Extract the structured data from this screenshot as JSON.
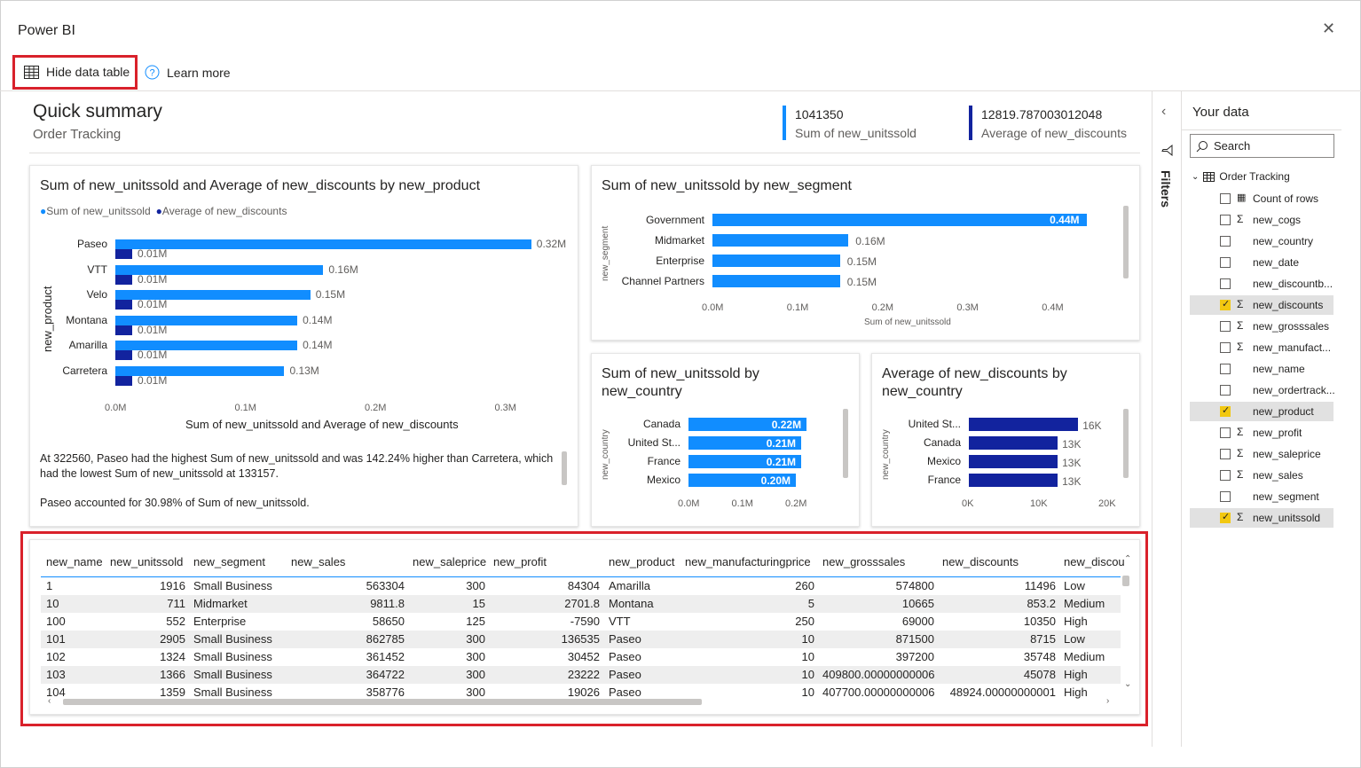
{
  "app": {
    "title": "Power BI"
  },
  "toolbar": {
    "hide_table_label": "Hide data table",
    "learn_more_label": "Learn more"
  },
  "summary": {
    "title": "Quick summary",
    "subtitle": "Order Tracking",
    "kpis": [
      {
        "value": "1041350",
        "label": "Sum of new_unitssold"
      },
      {
        "value": "12819.787003012048",
        "label": "Average of new_discounts"
      }
    ]
  },
  "charts": {
    "product": {
      "title": "Sum of new_unitssold and Average of new_discounts by new_product",
      "legend": [
        "Sum of new_unitssold",
        "Average of new_discounts"
      ],
      "ylabel": "new_product",
      "xlabel": "Sum of new_unitssold and Average of new_discounts",
      "xticks": [
        "0.0M",
        "0.1M",
        "0.2M",
        "0.3M"
      ],
      "value_labels": [
        "0.32M",
        "0.01M",
        "0.16M",
        "0.01M",
        "0.15M",
        "0.01M",
        "0.14M",
        "0.01M",
        "0.14M",
        "0.01M",
        "0.13M",
        "0.01M"
      ],
      "insight1": "At 322560, Paseo had the highest Sum of new_unitssold and was 142.24% higher than Carretera, which had the lowest Sum of new_unitssold at 133157.",
      "insight2": "Paseo accounted for 30.98% of Sum of new_unitssold."
    },
    "segment": {
      "title": "Sum of new_unitssold by new_segment",
      "ylabel": "new_segment",
      "xlabel": "Sum of new_unitssold",
      "xticks": [
        "0.0M",
        "0.1M",
        "0.2M",
        "0.3M",
        "0.4M"
      ],
      "value_labels": [
        "0.44M",
        "0.16M",
        "0.15M",
        "0.15M"
      ]
    },
    "country": {
      "title": "Sum of new_unitssold by new_country",
      "ylabel": "new_country",
      "xticks": [
        "0.0M",
        "0.1M",
        "0.2M"
      ],
      "value_labels": [
        "0.22M",
        "0.21M",
        "0.21M",
        "0.20M"
      ]
    },
    "disc_country": {
      "title": "Average of new_discounts by new_country",
      "ylabel": "new_country",
      "xticks": [
        "0K",
        "10K",
        "20K"
      ],
      "value_labels": [
        "16K",
        "13K",
        "13K",
        "13K"
      ]
    }
  },
  "chart_data": [
    {
      "type": "bar",
      "title": "Sum of new_unitssold and Average of new_discounts by new_product",
      "categories": [
        "Paseo",
        "VTT",
        "Velo",
        "Montana",
        "Amarilla",
        "Carretera"
      ],
      "series": [
        {
          "name": "Sum of new_unitssold",
          "values": [
            0.32,
            0.16,
            0.15,
            0.14,
            0.14,
            0.13
          ],
          "color": "#118dff"
        },
        {
          "name": "Average of new_discounts",
          "values": [
            0.01,
            0.01,
            0.01,
            0.01,
            0.01,
            0.01
          ],
          "color": "#12239e"
        }
      ],
      "xlabel": "Sum of new_unitssold and Average of new_discounts",
      "ylabel": "new_product",
      "xlim": [
        0,
        0.33
      ]
    },
    {
      "type": "bar",
      "title": "Sum of new_unitssold by new_segment",
      "categories": [
        "Government",
        "Midmarket",
        "Enterprise",
        "Channel Partners"
      ],
      "values": [
        0.44,
        0.16,
        0.15,
        0.15
      ],
      "xlabel": "Sum of new_unitssold",
      "ylabel": "new_segment",
      "xlim": [
        0,
        0.45
      ]
    },
    {
      "type": "bar",
      "title": "Sum of new_unitssold by new_country",
      "categories": [
        "Canada",
        "United St...",
        "France",
        "Mexico"
      ],
      "values": [
        0.22,
        0.21,
        0.21,
        0.2
      ],
      "ylabel": "new_country",
      "xlim": [
        0,
        0.22
      ]
    },
    {
      "type": "bar",
      "title": "Average of new_discounts by new_country",
      "categories": [
        "United St...",
        "Canada",
        "Mexico",
        "France"
      ],
      "values": [
        16,
        13,
        13,
        13
      ],
      "ylabel": "new_country",
      "xlim": [
        0,
        20
      ]
    }
  ],
  "table": {
    "columns": [
      "new_name",
      "new_unitssold",
      "new_segment",
      "new_sales",
      "new_saleprice",
      "new_profit",
      "new_product",
      "new_manufacturingprice",
      "new_grosssales",
      "new_discounts",
      "new_discou"
    ],
    "rows": [
      [
        "1",
        "1916",
        "Small Business",
        "563304",
        "300",
        "84304",
        "Amarilla",
        "260",
        "574800",
        "11496",
        "Low"
      ],
      [
        "10",
        "711",
        "Midmarket",
        "9811.8",
        "15",
        "2701.8",
        "Montana",
        "5",
        "10665",
        "853.2",
        "Medium"
      ],
      [
        "100",
        "552",
        "Enterprise",
        "58650",
        "125",
        "-7590",
        "VTT",
        "250",
        "69000",
        "10350",
        "High"
      ],
      [
        "101",
        "2905",
        "Small Business",
        "862785",
        "300",
        "136535",
        "Paseo",
        "10",
        "871500",
        "8715",
        "Low"
      ],
      [
        "102",
        "1324",
        "Small Business",
        "361452",
        "300",
        "30452",
        "Paseo",
        "10",
        "397200",
        "35748",
        "Medium"
      ],
      [
        "103",
        "1366",
        "Small Business",
        "364722",
        "300",
        "23222",
        "Paseo",
        "10",
        "409800.00000000006",
        "45078",
        "High"
      ],
      [
        "104",
        "1359",
        "Small Business",
        "358776",
        "300",
        "19026",
        "Paseo",
        "10",
        "407700.00000000006",
        "48924.00000000001",
        "High"
      ]
    ]
  },
  "filters_label": "Filters",
  "data_pane": {
    "title": "Your data",
    "search_placeholder": "Search",
    "table_name": "Order Tracking",
    "fields": [
      {
        "name": "Count of rows",
        "icon": "calc",
        "checked": false
      },
      {
        "name": "new_cogs",
        "icon": "sigma",
        "checked": false
      },
      {
        "name": "new_country",
        "icon": "",
        "checked": false
      },
      {
        "name": "new_date",
        "icon": "",
        "checked": false
      },
      {
        "name": "new_discountb...",
        "icon": "",
        "checked": false
      },
      {
        "name": "new_discounts",
        "icon": "sigma",
        "checked": true
      },
      {
        "name": "new_grosssales",
        "icon": "sigma",
        "checked": false
      },
      {
        "name": "new_manufact...",
        "icon": "sigma",
        "checked": false
      },
      {
        "name": "new_name",
        "icon": "",
        "checked": false
      },
      {
        "name": "new_ordertrack...",
        "icon": "",
        "checked": false
      },
      {
        "name": "new_product",
        "icon": "",
        "checked": true
      },
      {
        "name": "new_profit",
        "icon": "sigma",
        "checked": false
      },
      {
        "name": "new_saleprice",
        "icon": "sigma",
        "checked": false
      },
      {
        "name": "new_sales",
        "icon": "sigma",
        "checked": false
      },
      {
        "name": "new_segment",
        "icon": "",
        "checked": false
      },
      {
        "name": "new_unitssold",
        "icon": "sigma",
        "checked": true
      }
    ]
  },
  "colors": {
    "accent_light": "#118dff",
    "accent_dark": "#12239e",
    "highlight": "#d9212b",
    "check": "#f2c811"
  }
}
